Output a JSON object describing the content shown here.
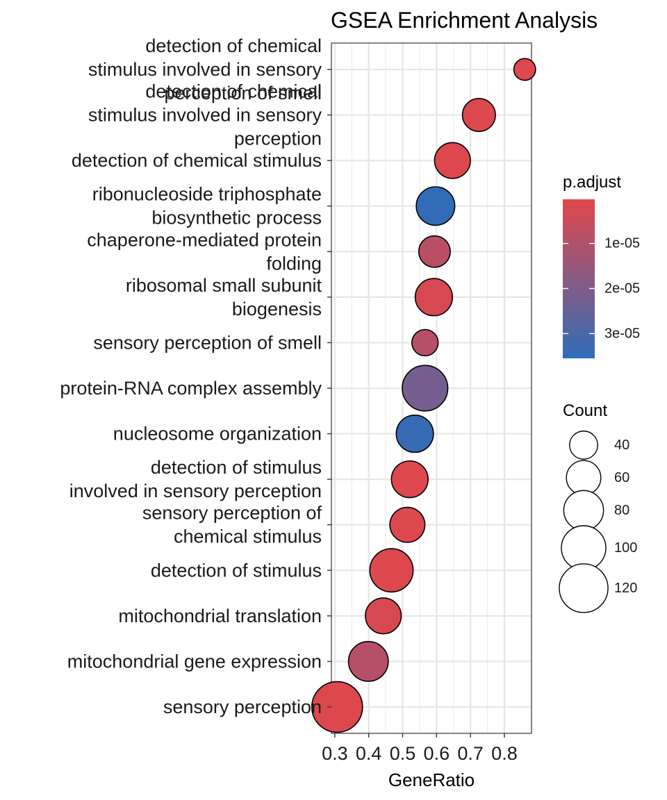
{
  "chart_data": {
    "type": "scatter",
    "title": "GSEA Enrichment Analysis",
    "xlabel": "GeneRatio",
    "ylabel": "",
    "xlim": [
      0.29,
      0.88
    ],
    "x_ticks": [
      0.3,
      0.4,
      0.5,
      0.6,
      0.7,
      0.8
    ],
    "x_tick_labels": [
      "0.3",
      "0.4",
      "0.5",
      "0.6",
      "0.7",
      "0.8"
    ],
    "grid": true,
    "legend_position": "right",
    "color_legend": {
      "title": "p.adjust",
      "min": 2e-07,
      "max": 3.55e-05,
      "ticks": [
        1e-05,
        2e-05,
        3e-05
      ],
      "tick_labels": [
        "1e-05",
        "2e-05",
        "3e-05"
      ],
      "low_color": "#E0474C",
      "high_color": "#2F6DB8",
      "mid_color": "#8A5A82"
    },
    "size_legend": {
      "title": "Count",
      "values": [
        40,
        60,
        80,
        100,
        120
      ],
      "labels": [
        "40",
        "60",
        "80",
        "100",
        "120"
      ]
    },
    "points": [
      {
        "term": "detection of chemical stimulus involved in sensory perception of smell",
        "lines": [
          "detection of chemical",
          "stimulus involved in sensory",
          "perception of smell"
        ],
        "x": 0.86,
        "count": 24,
        "p_adjust": 1e-06
      },
      {
        "term": "detection of chemical stimulus involved in sensory perception",
        "lines": [
          "detection of chemical",
          "stimulus involved in sensory",
          "perception"
        ],
        "x": 0.725,
        "count": 55,
        "p_adjust": 1e-06
      },
      {
        "term": "detection of chemical stimulus",
        "lines": [
          "detection of chemical stimulus"
        ],
        "x": 0.647,
        "count": 65,
        "p_adjust": 1e-06
      },
      {
        "term": "ribonucleoside triphosphate biosynthetic process",
        "lines": [
          "ribonucleoside triphosphate",
          "biosynthetic process"
        ],
        "x": 0.597,
        "count": 75,
        "p_adjust": 3.5e-05
      },
      {
        "term": "chaperone-mediated protein folding",
        "lines": [
          "chaperone-mediated protein",
          "folding"
        ],
        "x": 0.594,
        "count": 50,
        "p_adjust": 8e-06
      },
      {
        "term": "ribosomal small subunit biogenesis",
        "lines": [
          "ribosomal small subunit",
          "biogenesis"
        ],
        "x": 0.592,
        "count": 70,
        "p_adjust": 2e-06
      },
      {
        "term": "sensory perception of smell",
        "lines": [
          "sensory perception of smell"
        ],
        "x": 0.566,
        "count": 35,
        "p_adjust": 9e-06
      },
      {
        "term": "protein-RNA complex assembly",
        "lines": [
          "protein-RNA complex assembly"
        ],
        "x": 0.566,
        "count": 105,
        "p_adjust": 2.2e-05
      },
      {
        "term": "nucleosome organization",
        "lines": [
          "nucleosome organization"
        ],
        "x": 0.536,
        "count": 70,
        "p_adjust": 3.4e-05
      },
      {
        "term": "detection of stimulus involved in sensory perception",
        "lines": [
          "detection of stimulus",
          "involved in sensory perception"
        ],
        "x": 0.521,
        "count": 68,
        "p_adjust": 1e-06
      },
      {
        "term": "sensory perception of chemical stimulus",
        "lines": [
          "sensory perception of",
          "chemical stimulus"
        ],
        "x": 0.514,
        "count": 62,
        "p_adjust": 1e-06
      },
      {
        "term": "detection of stimulus",
        "lines": [
          "detection of stimulus"
        ],
        "x": 0.467,
        "count": 95,
        "p_adjust": 1e-06
      },
      {
        "term": "mitochondrial translation",
        "lines": [
          "mitochondrial translation"
        ],
        "x": 0.443,
        "count": 65,
        "p_adjust": 2e-06
      },
      {
        "term": "mitochondrial gene expression",
        "lines": [
          "mitochondrial gene expression"
        ],
        "x": 0.399,
        "count": 80,
        "p_adjust": 9e-06
      },
      {
        "term": "sensory perception",
        "lines": [
          "sensory perception"
        ],
        "x": 0.307,
        "count": 130,
        "p_adjust": 1e-06
      }
    ]
  }
}
